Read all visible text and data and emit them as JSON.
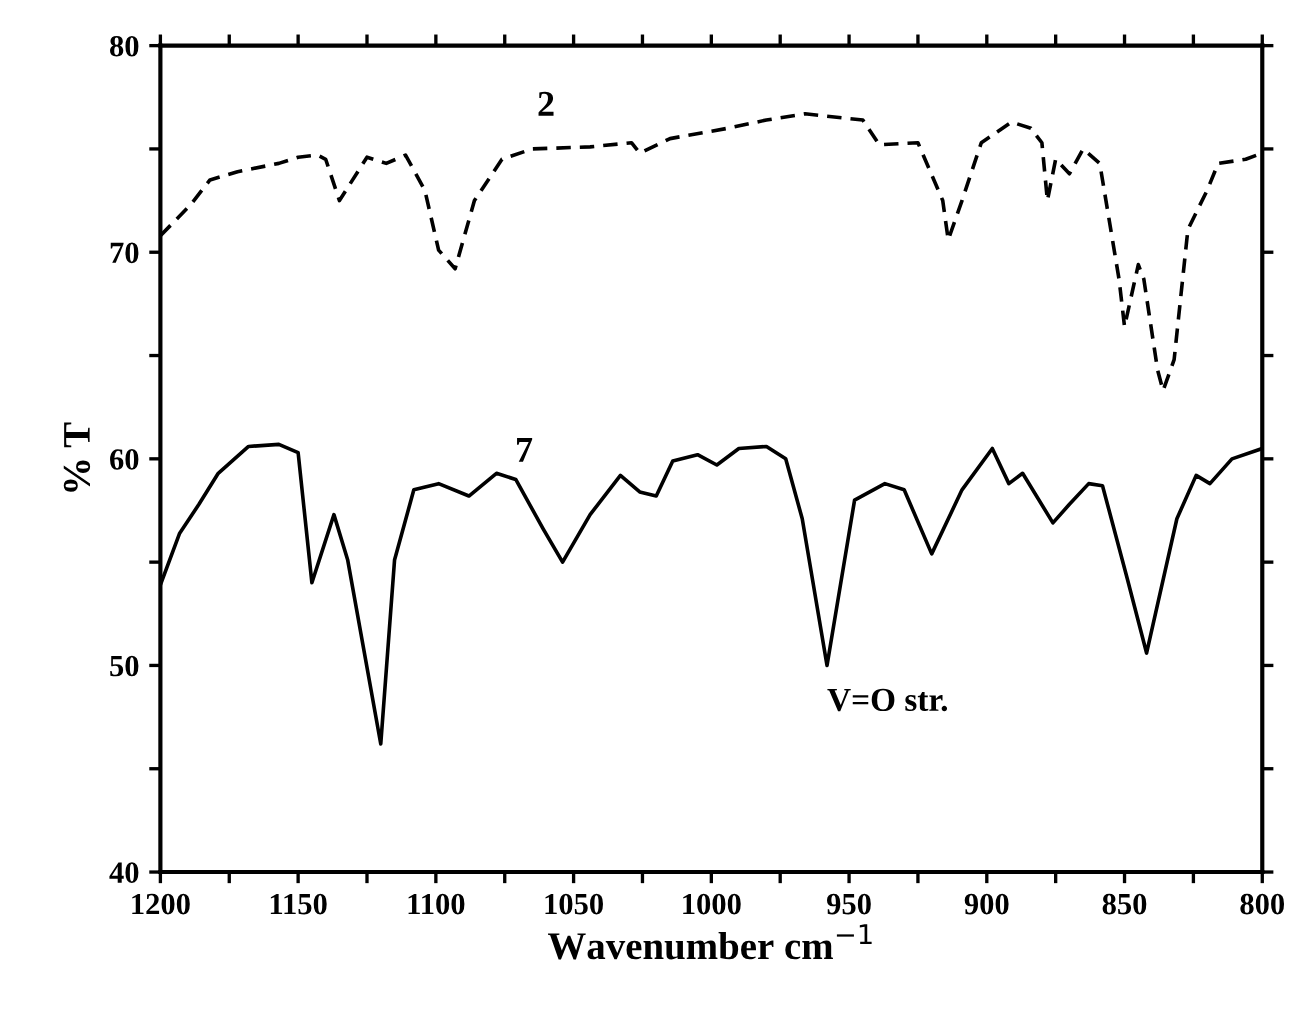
{
  "chart_data": {
    "type": "line",
    "xlabel": "Wavenumber cm$^{−1}$",
    "ylabel": "% T",
    "xlim": [
      1200,
      800
    ],
    "ylim": [
      40,
      80
    ],
    "xticks": [
      1200,
      {
        "value": 1175,
        "label": null
      },
      1150,
      {
        "value": 1125,
        "label": null
      },
      1100,
      {
        "value": 1075,
        "label": null
      },
      1050,
      {
        "value": 1025,
        "label": null
      },
      1000,
      {
        "value": 975,
        "label": null
      },
      950,
      {
        "value": 925,
        "label": null
      },
      900,
      {
        "value": 875,
        "label": null
      },
      850,
      {
        "value": 825,
        "label": null
      },
      800
    ],
    "yticks": [
      40,
      {
        "value": 45,
        "label": null
      },
      50,
      {
        "value": 55,
        "label": null
      },
      60,
      {
        "value": 65,
        "label": null
      },
      70,
      {
        "value": 75,
        "label": null
      },
      80
    ],
    "grid": false,
    "legend": false,
    "marker": "none",
    "series": [
      {
        "name": "2",
        "color": "#000000",
        "line_style": "dashed",
        "x": [
          1200,
          1189,
          1182,
          1172,
          1157,
          1150,
          1143,
          1140,
          1135,
          1125,
          1118,
          1111,
          1104,
          1099,
          1093,
          1086,
          1076,
          1065,
          1044,
          1029,
          1026,
          1015,
          994,
          980,
          966,
          945,
          939,
          925,
          916,
          914,
          909,
          902,
          891,
          884,
          880,
          878,
          875,
          870,
          865,
          859,
          852,
          850,
          845,
          843,
          838,
          836,
          832,
          827,
          820,
          816,
          806,
          800
        ],
        "values": [
          70.8,
          72.3,
          73.5,
          73.9,
          74.3,
          74.6,
          74.7,
          74.5,
          72.5,
          74.6,
          74.3,
          74.7,
          73.0,
          70.1,
          69.2,
          72.5,
          74.5,
          75.0,
          75.1,
          75.3,
          74.8,
          75.5,
          76.0,
          76.4,
          76.7,
          76.4,
          75.2,
          75.3,
          72.5,
          70.6,
          72.5,
          75.3,
          76.3,
          76.0,
          75.3,
          72.5,
          74.5,
          73.8,
          75.0,
          74.3,
          68.7,
          66.4,
          69.4,
          68.7,
          64.3,
          63.3,
          64.8,
          71.1,
          73.0,
          74.3,
          74.5,
          74.8
        ]
      },
      {
        "name": "7",
        "color": "#000000",
        "line_style": "solid",
        "x": [
          1200,
          1193,
          1186,
          1179,
          1168,
          1157,
          1150,
          1145,
          1137,
          1132,
          1120,
          1115,
          1108,
          1099,
          1088,
          1078,
          1071,
          1061,
          1054,
          1044,
          1033,
          1026,
          1020,
          1014,
          1005,
          998,
          990,
          980,
          973,
          967,
          958,
          948,
          937,
          930,
          920,
          909,
          898,
          892,
          887,
          876,
          870,
          863,
          858,
          849,
          842,
          831,
          824,
          819,
          811,
          800
        ],
        "values": [
          53.9,
          56.4,
          57.8,
          59.3,
          60.6,
          60.7,
          60.3,
          54.0,
          57.3,
          55.1,
          46.2,
          55.1,
          58.5,
          58.8,
          58.2,
          59.3,
          59.0,
          56.6,
          55.0,
          57.3,
          59.2,
          58.4,
          58.2,
          59.9,
          60.2,
          59.7,
          60.5,
          60.6,
          60.0,
          57.1,
          50.0,
          58.0,
          58.8,
          58.5,
          55.4,
          58.5,
          60.5,
          58.8,
          59.3,
          56.9,
          57.8,
          58.8,
          58.7,
          54.2,
          50.6,
          57.1,
          59.2,
          58.8,
          60.0,
          60.5
        ]
      }
    ],
    "annotations": [
      {
        "text": "V=O str.",
        "x": 958,
        "y": 50.0
      }
    ]
  }
}
